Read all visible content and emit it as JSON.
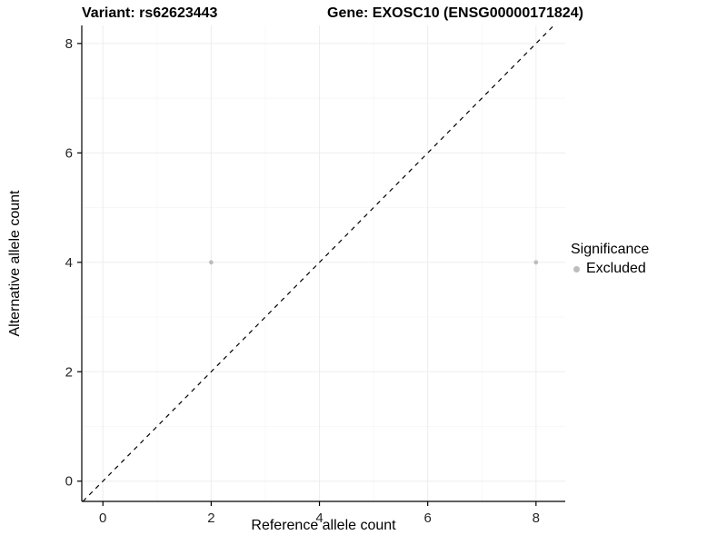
{
  "chart_data": {
    "type": "scatter",
    "title_left": "Variant: rs62623443",
    "title_right": "Gene: EXOSC10 (ENSG00000171824)",
    "xlabel": "Reference allele count",
    "ylabel": "Alternative allele count",
    "xlim": [
      -0.39,
      8.54
    ],
    "ylim": [
      -0.37,
      8.33
    ],
    "x_ticks": [
      0,
      2,
      4,
      6,
      8
    ],
    "y_ticks": [
      0,
      2,
      4,
      6,
      8
    ],
    "x_minor": [
      1,
      3,
      5,
      7
    ],
    "y_minor": [
      1,
      3,
      5,
      7
    ],
    "grid": true,
    "points": [
      {
        "x": 2,
        "y": 4,
        "series": "Excluded"
      },
      {
        "x": 8,
        "y": 4,
        "series": "Excluded"
      }
    ],
    "reference_line": {
      "type": "identity",
      "style": "dashed",
      "color": "#000000"
    },
    "legend": {
      "title": "Significance",
      "position": "right",
      "items": [
        {
          "label": "Excluded",
          "color": "#bdbdbd"
        }
      ]
    },
    "colors": {
      "point_excluded": "#bdbdbd",
      "axis": "#000000",
      "grid_major": "#ededed",
      "grid_minor": "#f6f6f6",
      "tick_label": "#262626"
    }
  }
}
